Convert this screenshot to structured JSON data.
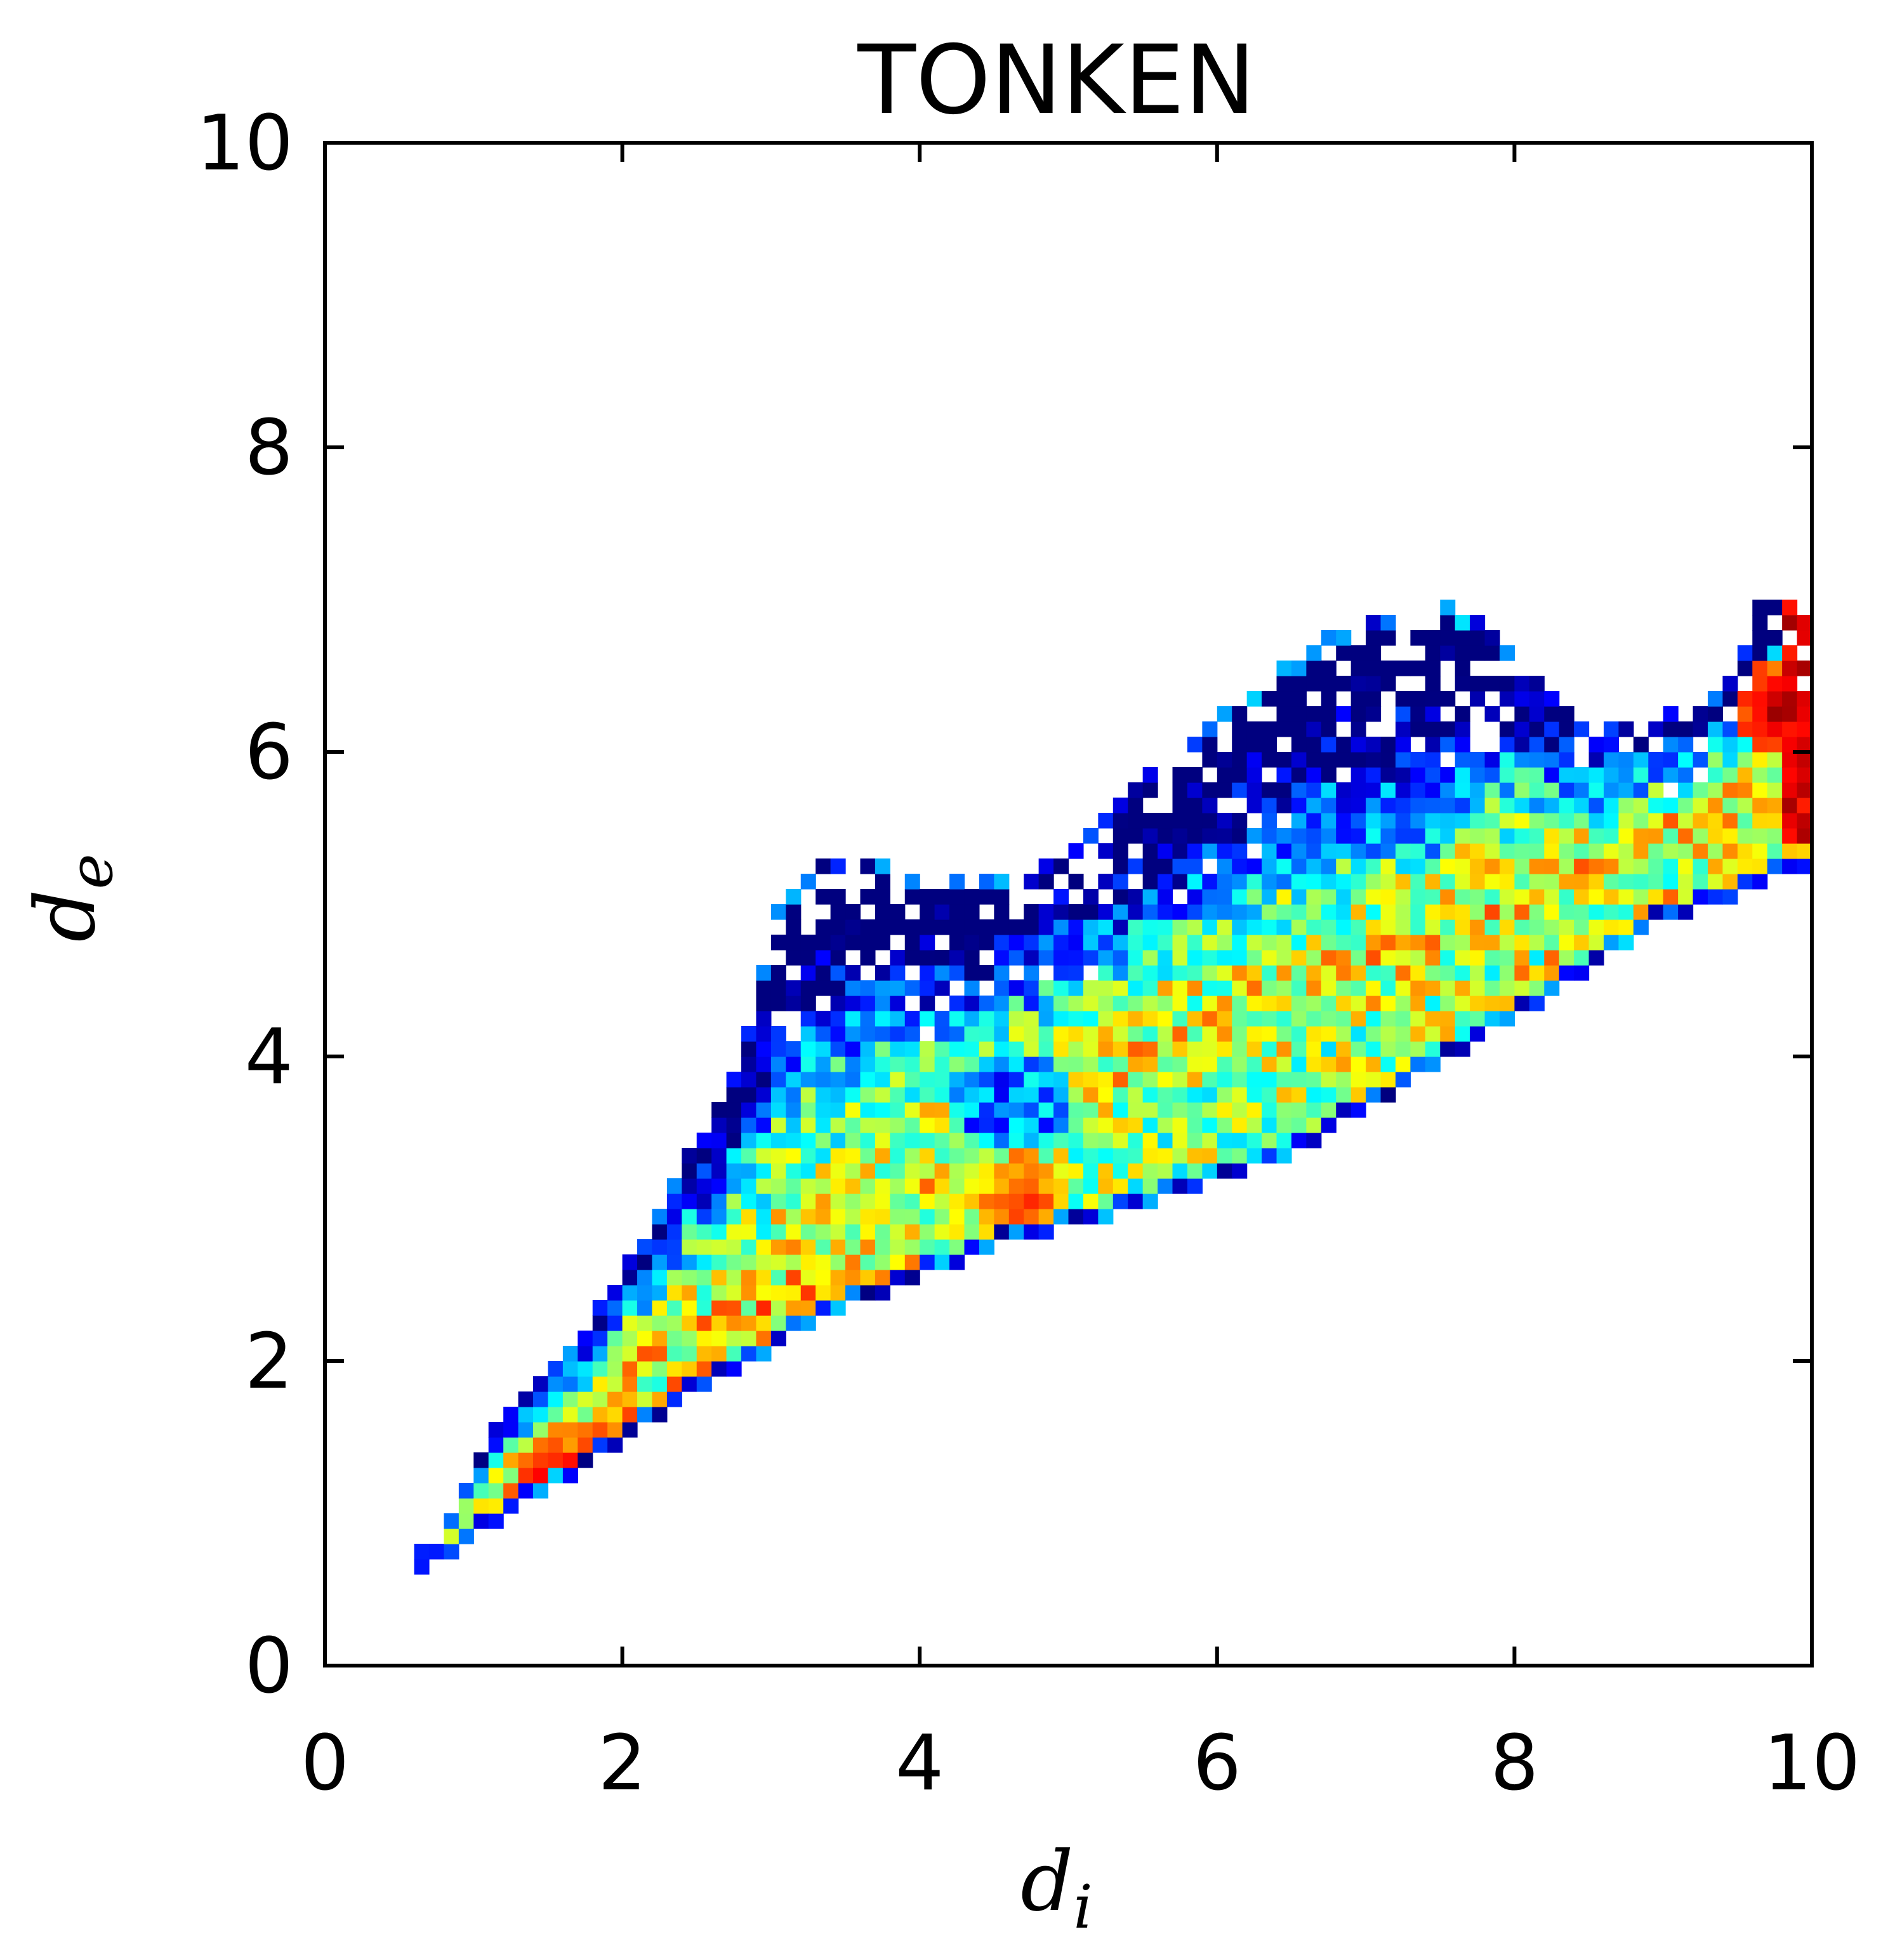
{
  "chart_data": {
    "type": "heatmap",
    "title": "TONKEN",
    "xlabel": {
      "base": "d",
      "sub": "i"
    },
    "ylabel": {
      "base": "d",
      "sub": "e"
    },
    "xlim": [
      0,
      10
    ],
    "ylim": [
      0,
      10
    ],
    "xticks": [
      "0",
      "2",
      "4",
      "6",
      "8",
      "10"
    ],
    "yticks": [
      "0",
      "2",
      "4",
      "6",
      "8",
      "10"
    ],
    "grid": false,
    "legend": "none",
    "bin_size": 0.1,
    "colormap": [
      "#00007f",
      "#0000ff",
      "#007fff",
      "#00ffff",
      "#7fff7f",
      "#ffff00",
      "#ff7f00",
      "#ff0000",
      "#7f0000"
    ],
    "region": {
      "lower_boundary": [
        [
          0.7,
          0.7
        ],
        [
          1.5,
          1.2
        ],
        [
          2.5,
          1.85
        ],
        [
          3.5,
          2.4
        ],
        [
          4.5,
          2.8
        ],
        [
          5.5,
          3.05
        ],
        [
          6.5,
          3.4
        ],
        [
          7.5,
          4.0
        ],
        [
          8.5,
          4.6
        ],
        [
          9.0,
          4.95
        ],
        [
          9.5,
          5.1
        ],
        [
          9.9,
          5.3
        ]
      ],
      "upper_boundary": [
        [
          0.7,
          0.7
        ],
        [
          1.2,
          1.6
        ],
        [
          1.7,
          2.1
        ],
        [
          2.2,
          2.85
        ],
        [
          2.5,
          3.4
        ],
        [
          2.8,
          3.95
        ],
        [
          3.05,
          4.95
        ],
        [
          3.35,
          5.3
        ],
        [
          3.8,
          5.2
        ],
        [
          4.2,
          5.1
        ],
        [
          4.8,
          5.2
        ],
        [
          5.2,
          5.5
        ],
        [
          5.6,
          5.85
        ],
        [
          6.2,
          6.35
        ],
        [
          6.7,
          6.7
        ],
        [
          7.4,
          6.95
        ],
        [
          7.8,
          6.85
        ],
        [
          8.2,
          6.45
        ],
        [
          8.5,
          6.15
        ],
        [
          9.0,
          6.2
        ],
        [
          9.5,
          6.45
        ],
        [
          9.65,
          7.0
        ],
        [
          9.9,
          7.0
        ]
      ],
      "core_line": [
        [
          0.9,
          0.85
        ],
        [
          2.0,
          1.9
        ],
        [
          3.5,
          2.9
        ],
        [
          5.0,
          3.75
        ],
        [
          6.5,
          4.4
        ],
        [
          8.0,
          5.0
        ],
        [
          9.0,
          5.5
        ],
        [
          9.8,
          5.8
        ]
      ]
    },
    "hot_spots": [
      {
        "x": 1.6,
        "y": 1.2,
        "intensity": 0.95
      },
      {
        "x": 1.9,
        "y": 1.35,
        "intensity": 0.9
      },
      {
        "x": 4.7,
        "y": 3.05,
        "intensity": 0.85
      },
      {
        "x": 9.8,
        "y": 6.3,
        "intensity": 0.98
      }
    ],
    "cool_clusters": [
      {
        "x": 3.6,
        "y": 4.85,
        "rx": 0.55,
        "ry": 0.45
      },
      {
        "x": 5.6,
        "y": 5.25,
        "rx": 0.7,
        "ry": 0.4
      },
      {
        "x": 7.0,
        "y": 5.8,
        "rx": 0.8,
        "ry": 0.55
      },
      {
        "x": 7.8,
        "y": 6.35,
        "rx": 0.6,
        "ry": 0.5
      },
      {
        "x": 4.6,
        "y": 3.7,
        "rx": 0.45,
        "ry": 0.35
      }
    ]
  }
}
